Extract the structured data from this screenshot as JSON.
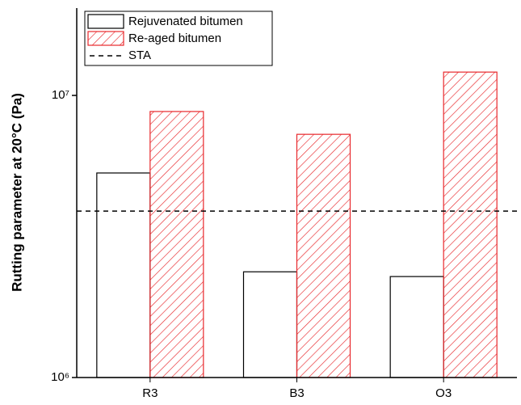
{
  "chart_data": {
    "type": "bar",
    "y_label": "Rutting parameter at 20°C (Pa)",
    "categories": [
      "R3",
      "B3",
      "O3"
    ],
    "series": [
      {
        "name": "Rejuvenated bitumen",
        "color": "#000000",
        "hatch": false,
        "values": [
          5310000,
          2370000,
          2280000
        ]
      },
      {
        "name": "Re-aged bitumen",
        "color": "#e8282c",
        "hatch": true,
        "values": [
          8770000,
          7280000,
          12100000
        ]
      }
    ],
    "reference_lines": [
      {
        "name": "STA",
        "value": 3890000,
        "color": "#000000",
        "style": "dashed"
      }
    ],
    "log_scale": true,
    "ylim": [
      1000000,
      20400000
    ],
    "yticks": [
      {
        "value": 1000000,
        "label": "10⁶"
      },
      {
        "value": 10000000,
        "label": "10⁷"
      }
    ],
    "legend": "top-left"
  }
}
